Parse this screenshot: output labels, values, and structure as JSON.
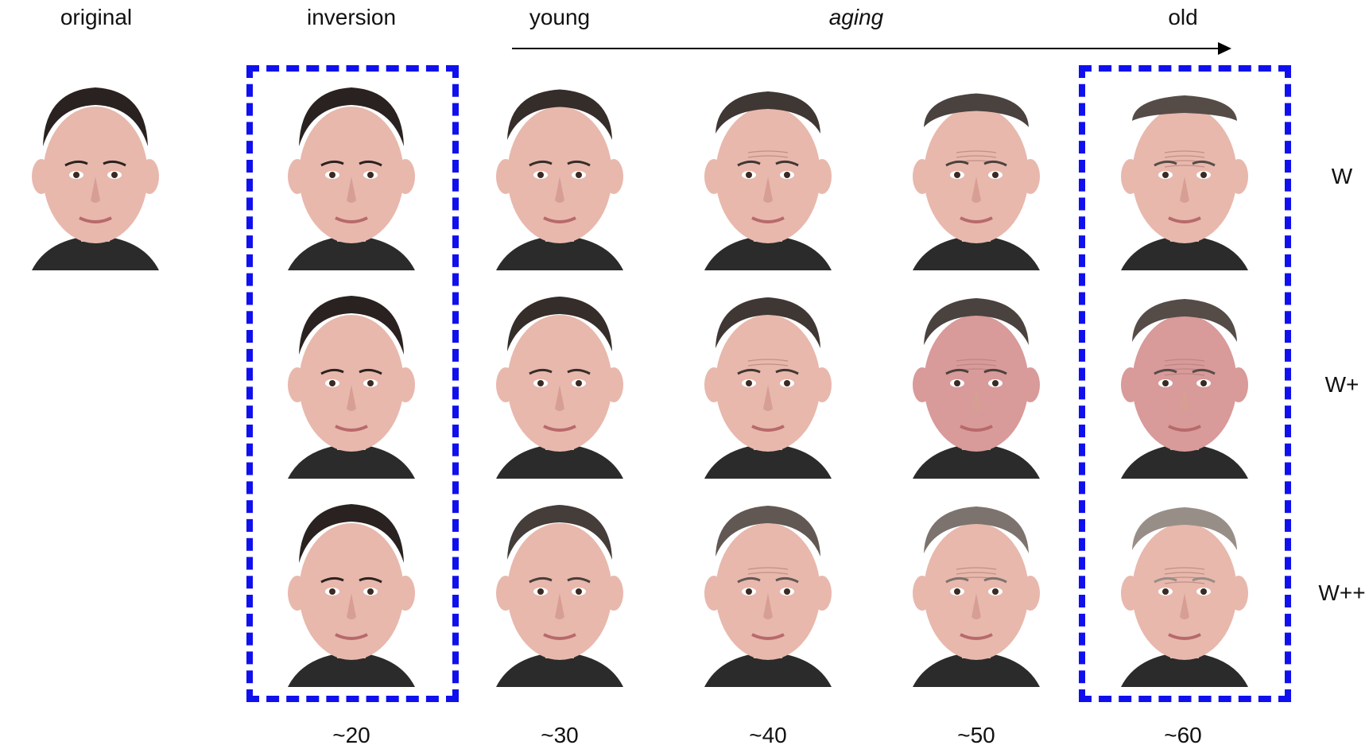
{
  "headers": {
    "original": "original",
    "inversion": "inversion",
    "young": "young",
    "aging": "aging",
    "old": "old"
  },
  "rows": [
    {
      "label": "W"
    },
    {
      "label": "W+"
    },
    {
      "label": "W++"
    }
  ],
  "ages": [
    "~20",
    "~30",
    "~40",
    "~50",
    "~60"
  ],
  "colors": {
    "highlight_box": "#1010ee",
    "skin": "#e8b8ad",
    "hair_dark": "#2a2220",
    "hair_gray": "#a49a93",
    "shirt": "#2b2b2b",
    "background": "#ffffff"
  }
}
